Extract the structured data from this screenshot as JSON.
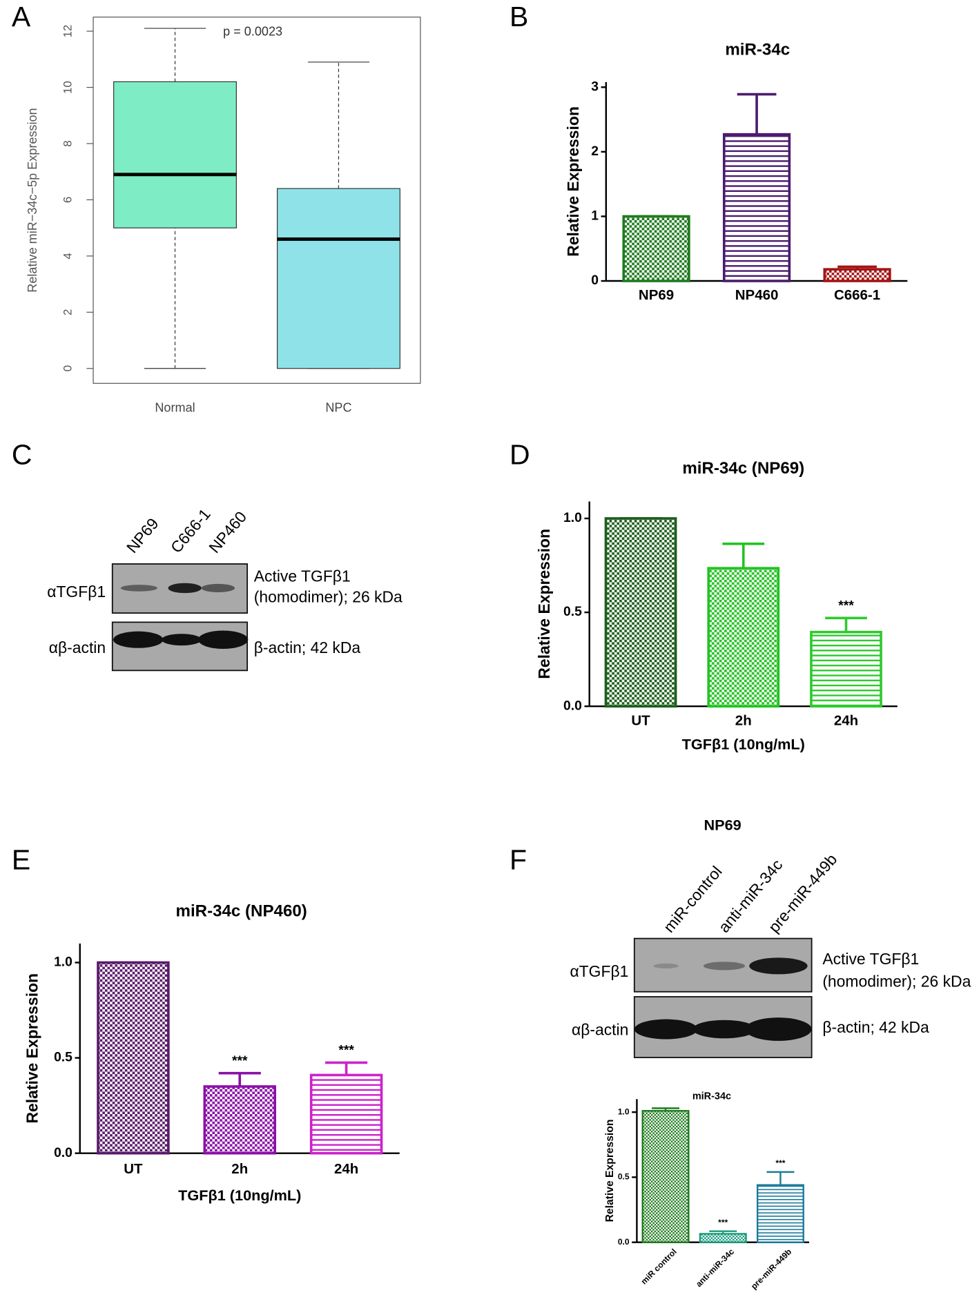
{
  "panel_labels": [
    "A",
    "B",
    "C",
    "D",
    "E",
    "F"
  ],
  "chart_data": [
    {
      "type": "box",
      "y_label": "Relative miR−34c−5p Expression",
      "annotation": "p = 0.0023",
      "categories": [
        "Normal",
        "NPC"
      ],
      "stats": [
        {
          "min": 0,
          "q1": 5.0,
          "median": 6.9,
          "q3": 10.2,
          "max": 12.1
        },
        {
          "min": 0,
          "q1": 0,
          "median": 4.6,
          "q3": 6.4,
          "max": 10.9
        }
      ],
      "colors": [
        "#7eedc5",
        "#8fe3e8"
      ],
      "ylim": [
        -0.53,
        12.5
      ],
      "yticks": [
        0,
        2,
        4,
        6,
        8,
        10,
        12
      ]
    },
    {
      "type": "bar",
      "title": "miR-34c",
      "y_label": "Relative Expression",
      "categories": [
        "NP69",
        "NP460",
        "C666-1"
      ],
      "values": [
        1,
        2.27,
        0.18
      ],
      "errors": [
        0,
        0.62,
        0.04
      ],
      "colors": [
        "#1e7b1e",
        "#4b1c6e",
        "#a31515"
      ],
      "patterns": [
        "check",
        "hlines",
        "check"
      ],
      "ylim": [
        0,
        3.08
      ],
      "yticks": [
        0,
        1,
        2,
        3
      ]
    },
    {
      "type": "bar",
      "title": "miR-34c (NP69)",
      "y_label": "Relative Expression",
      "x_label": "TGFβ1  (10ng/mL)",
      "categories": [
        "UT",
        "2h",
        "24h"
      ],
      "values": [
        1,
        0.735,
        0.395
      ],
      "errors": [
        0,
        0.13,
        0.075
      ],
      "significance": [
        null,
        null,
        "***"
      ],
      "colors": [
        "#1d5e1d",
        "#22c322",
        "#2fc92f"
      ],
      "patterns": [
        "check",
        "check",
        "hlines"
      ],
      "ylim": [
        0,
        1.09
      ],
      "yticks": [
        {
          "value": 0,
          "label": "0.0"
        },
        {
          "value": 0.5,
          "label": "0.5"
        },
        {
          "value": 1,
          "label": "1.0"
        }
      ]
    },
    {
      "type": "bar",
      "title": "miR-34c (NP460)",
      "y_label": "Relative Expression",
      "x_label": "TGFβ1  (10ng/mL)",
      "categories": [
        "UT",
        "2h",
        "24h"
      ],
      "values": [
        1,
        0.35,
        0.41
      ],
      "errors": [
        0,
        0.07,
        0.065
      ],
      "significance": [
        null,
        "***",
        "***"
      ],
      "colors": [
        "#5a1a6b",
        "#8a10a8",
        "#cc22cc"
      ],
      "patterns": [
        "check",
        "check",
        "hlines"
      ],
      "ylim": [
        0,
        1.1
      ],
      "yticks": [
        {
          "value": 0,
          "label": "0.0"
        },
        {
          "value": 0.5,
          "label": "0.5"
        },
        {
          "value": 1,
          "label": "1.0"
        }
      ]
    },
    {
      "type": "bar",
      "title": "miR-34c",
      "y_label": "Relative Expression",
      "categories": [
        "miR control",
        "anti-miR-34c",
        "pre-miR-449b"
      ],
      "values": [
        1.01,
        0.065,
        0.44
      ],
      "errors": [
        0.02,
        0.02,
        0.1
      ],
      "significance": [
        null,
        "***",
        "***"
      ],
      "colors": [
        "#1e7b1e",
        "#1a9a7a",
        "#1a7a9a"
      ],
      "patterns": [
        "check",
        "check",
        "hlines"
      ],
      "ylim": [
        0,
        1.1
      ],
      "yticks": [
        {
          "value": 0,
          "label": "0.0"
        },
        {
          "value": 0.5,
          "label": "0.5"
        },
        {
          "value": 1,
          "label": "1.0"
        }
      ]
    }
  ],
  "blots": [
    {
      "lanes": [
        "NP69",
        "C666-1",
        "NP460"
      ],
      "row_labels": [
        "αTGFβ1",
        "αβ-actin"
      ],
      "right_labels": [
        [
          "Active TGFβ1",
          "(homodimer); 26 kDa"
        ],
        [
          "β-actin; 42 kDa"
        ]
      ]
    },
    {
      "title": "NP69",
      "lanes": [
        "miR-control",
        "anti-miR-34c",
        "pre-miR-449b"
      ],
      "row_labels": [
        "αTGFβ1",
        "αβ-actin"
      ],
      "right_labels": [
        [
          "Active TGFβ1",
          "(homodimer); 26 kDa"
        ],
        [
          "β-actin; 42 kDa"
        ]
      ]
    }
  ]
}
